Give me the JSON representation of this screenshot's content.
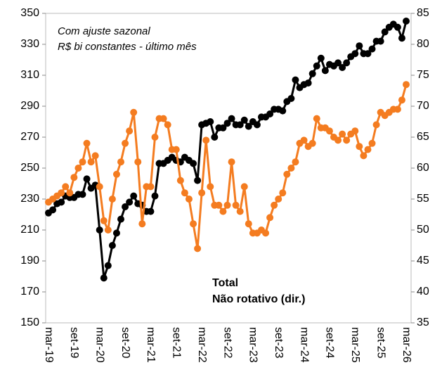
{
  "chart_data": {
    "type": "line",
    "annotations": [
      "Com ajuste sazonal",
      "R$ bi constantes - último mês"
    ],
    "categories": [
      "mar-19",
      null,
      null,
      null,
      null,
      null,
      "set-19",
      null,
      null,
      null,
      null,
      null,
      "mar-20",
      null,
      null,
      null,
      null,
      null,
      "set-20",
      null,
      null,
      null,
      null,
      null,
      "mar-21",
      null,
      null,
      null,
      null,
      null,
      "set-21",
      null,
      null,
      null,
      null,
      null,
      "mar-22",
      null,
      null,
      null,
      null,
      null,
      "set-22",
      null,
      null,
      null,
      null,
      null,
      "mar-23",
      null,
      null,
      null,
      null,
      null,
      "set-23",
      null,
      null,
      null,
      null,
      null,
      "mar-24",
      null,
      null,
      null,
      null,
      null,
      "set-24",
      null,
      null,
      null,
      null,
      null,
      "mar-25",
      null,
      null,
      null,
      null,
      null,
      "set-25",
      null,
      null,
      null,
      null,
      null,
      "mar-26"
    ],
    "series": [
      {
        "name": "Total",
        "color": "#000000",
        "axis": "y",
        "values": [
          221,
          223,
          227,
          228,
          232,
          231,
          231,
          233,
          233,
          243,
          237,
          239,
          210,
          179,
          187,
          200,
          208,
          217,
          225,
          228,
          232,
          227,
          226,
          222,
          222,
          232,
          253,
          253,
          255,
          257,
          255,
          254,
          257,
          255,
          253,
          242,
          278,
          279,
          280,
          270,
          276,
          276,
          279,
          282,
          278,
          278,
          281,
          277,
          280,
          278,
          283,
          283,
          285,
          288,
          288,
          287,
          293,
          295,
          307,
          302,
          304,
          305,
          311,
          316,
          321,
          313,
          317,
          316,
          318,
          315,
          318,
          322,
          324,
          329,
          324,
          324,
          327,
          332,
          332,
          338,
          341,
          343,
          341,
          334,
          345
        ]
      },
      {
        "name": "Não rotativo (dir.)",
        "color": "#f47c20",
        "axis": "y2",
        "values": [
          54.5,
          55,
          55.5,
          56,
          57,
          56,
          58.5,
          60,
          61,
          64,
          61,
          62,
          57,
          51.5,
          50,
          55,
          59,
          61,
          64,
          66,
          69,
          61,
          51,
          57,
          57,
          65,
          68,
          68,
          67,
          63,
          63,
          58,
          56,
          55,
          51,
          47,
          56,
          64.5,
          57,
          54,
          54,
          53,
          54,
          61,
          54,
          53,
          57,
          51,
          49.5,
          49.5,
          50,
          49.5,
          52,
          54,
          55,
          56,
          59,
          60,
          61,
          64,
          64.5,
          63.5,
          64,
          68,
          66.5,
          66.5,
          66,
          65,
          64.5,
          65.5,
          64.5,
          65.5,
          66,
          63.5,
          62,
          63,
          64,
          67,
          69,
          68.5,
          69,
          69.5,
          69.5,
          71,
          73.5
        ]
      }
    ],
    "ylim": [
      150,
      350
    ],
    "yticks": [
      150,
      170,
      190,
      210,
      230,
      250,
      270,
      290,
      310,
      330,
      350
    ],
    "y2lim": [
      35,
      85
    ],
    "y2ticks": [
      35,
      40,
      45,
      50,
      55,
      60,
      65,
      70,
      75,
      80,
      85
    ],
    "grid": false
  }
}
